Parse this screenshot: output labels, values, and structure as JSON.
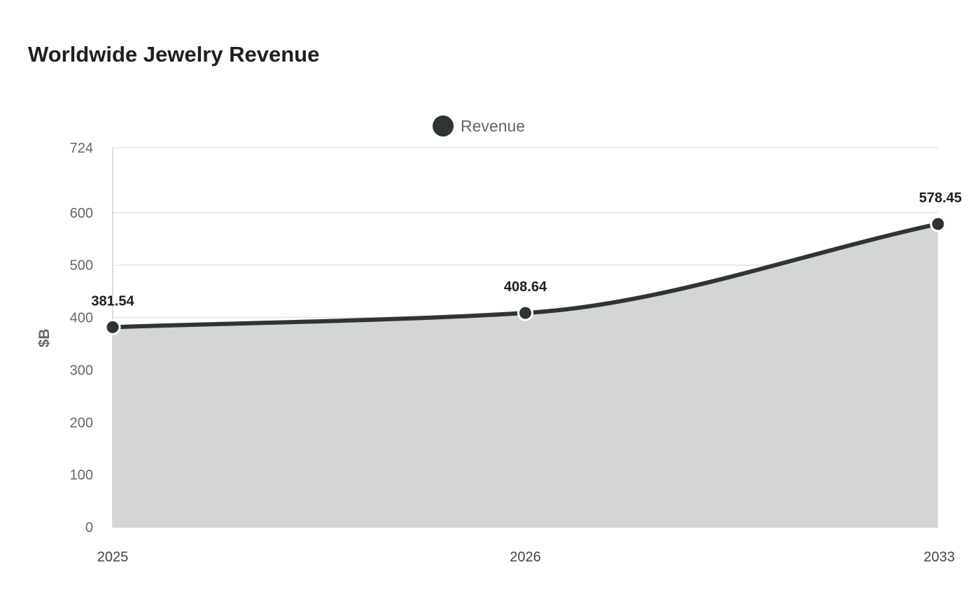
{
  "chart_data": {
    "type": "area",
    "title": "Worldwide Jewelry Revenue",
    "xlabel": "",
    "ylabel": "$B",
    "categories": [
      "2025",
      "2026",
      "2033"
    ],
    "series": [
      {
        "name": "Revenue",
        "values": [
          381.54,
          408.64,
          578.45
        ],
        "value_labels": [
          "381.54",
          "408.64",
          "578.45"
        ]
      }
    ],
    "ylim": [
      0,
      724
    ],
    "yticks": [
      0,
      100,
      200,
      300,
      400,
      500,
      600,
      724
    ],
    "ytick_labels": [
      "0",
      "100",
      "200",
      "300",
      "400",
      "500",
      "600",
      "724"
    ],
    "grid": true,
    "legend_position": "top-center",
    "colors": {
      "line": "#2f3435",
      "area": "#d4d6d5",
      "grid": "#e3e3e3",
      "axis": "#d0d0d0"
    }
  }
}
